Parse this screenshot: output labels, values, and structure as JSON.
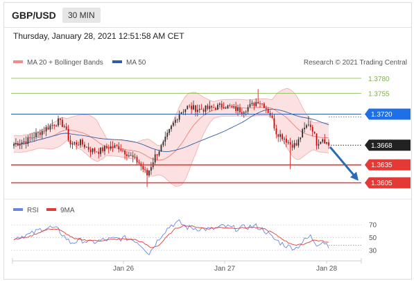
{
  "header": {
    "pair": "GBP/USD",
    "timeframe": "30 MIN",
    "timestamp": "Thursday, January 28, 2021 12:51:58 AM CET"
  },
  "legend": {
    "ma20_bb": "MA 20 + Bollinger Bands",
    "ma50": "MA 50",
    "credit": "Research © 2021 Trading Central",
    "rsi": "RSI",
    "ma9": "9MA"
  },
  "colors": {
    "bull": "#2c2c2c",
    "bear": "#d40000",
    "bollinger": "#f4a9a9",
    "ma50": "#2e5ca8",
    "resistance": "#7cb342",
    "support": "#e53935",
    "current": "#222222",
    "ma50_tag": "#1e6fe8",
    "arrow": "#2a6bb5",
    "rsi": "#6b86e0",
    "rsi_ma": "#e53935"
  },
  "chart_data": [
    {
      "type": "candlestick",
      "title": "",
      "ylim": [
        1.358,
        1.3795
      ],
      "x_labels": [
        "Jan 26",
        "Jan 27",
        "Jan 28"
      ],
      "levels": [
        {
          "value": "1.3780",
          "kind": "resistance"
        },
        {
          "value": "1.3755",
          "kind": "resistance"
        },
        {
          "value": "1.3720",
          "kind": "ma50"
        },
        {
          "value": "1.3668",
          "kind": "current"
        },
        {
          "value": "1.3635",
          "kind": "support"
        },
        {
          "value": "1.3605",
          "kind": "support"
        }
      ],
      "forecast_target": 1.3605,
      "anchors": [
        [
          0,
          1.367
        ],
        [
          6,
          1.3675
        ],
        [
          12,
          1.3688
        ],
        [
          18,
          1.37
        ],
        [
          22,
          1.3708
        ],
        [
          25,
          1.37
        ],
        [
          28,
          1.367
        ],
        [
          33,
          1.3672
        ],
        [
          38,
          1.366
        ],
        [
          42,
          1.3658
        ],
        [
          47,
          1.3665
        ],
        [
          52,
          1.3665
        ],
        [
          57,
          1.3652
        ],
        [
          62,
          1.3638
        ],
        [
          66,
          1.3618
        ],
        [
          70,
          1.365
        ],
        [
          74,
          1.367
        ],
        [
          78,
          1.3698
        ],
        [
          82,
          1.3722
        ],
        [
          86,
          1.3732
        ],
        [
          92,
          1.3728
        ],
        [
          98,
          1.373
        ],
        [
          104,
          1.3735
        ],
        [
          108,
          1.373
        ],
        [
          113,
          1.3726
        ],
        [
          118,
          1.3735
        ],
        [
          121,
          1.3743
        ],
        [
          124,
          1.3735
        ],
        [
          127,
          1.372
        ],
        [
          130,
          1.369
        ],
        [
          134,
          1.368
        ],
        [
          137,
          1.367
        ],
        [
          140,
          1.3668
        ],
        [
          143,
          1.369
        ],
        [
          146,
          1.3705
        ],
        [
          148,
          1.3695
        ],
        [
          150,
          1.3672
        ],
        [
          153,
          1.368
        ],
        [
          156,
          1.3668
        ]
      ]
    },
    {
      "type": "line",
      "title": "",
      "ylim": [
        20,
        80
      ],
      "y_ticks": [
        "70",
        "50",
        "30"
      ],
      "series": [
        {
          "name": "RSI",
          "anchors": [
            [
              0,
              50
            ],
            [
              8,
              55
            ],
            [
              14,
              64
            ],
            [
              18,
              66
            ],
            [
              22,
              62
            ],
            [
              25,
              52
            ],
            [
              28,
              42
            ],
            [
              34,
              46
            ],
            [
              38,
              42
            ],
            [
              44,
              46
            ],
            [
              50,
              48
            ],
            [
              56,
              49
            ],
            [
              60,
              46
            ],
            [
              64,
              36
            ],
            [
              67,
              25
            ],
            [
              70,
              40
            ],
            [
              74,
              58
            ],
            [
              78,
              70
            ],
            [
              82,
              74
            ],
            [
              86,
              66
            ],
            [
              92,
              64
            ],
            [
              98,
              63
            ],
            [
              104,
              68
            ],
            [
              110,
              64
            ],
            [
              116,
              67
            ],
            [
              120,
              68
            ],
            [
              124,
              62
            ],
            [
              128,
              50
            ],
            [
              132,
              42
            ],
            [
              136,
              36
            ],
            [
              140,
              34
            ],
            [
              144,
              46
            ],
            [
              147,
              52
            ],
            [
              150,
              40
            ],
            [
              153,
              44
            ],
            [
              156,
              38
            ]
          ]
        },
        {
          "name": "9MA",
          "anchors": [
            [
              0,
              47
            ],
            [
              8,
              52
            ],
            [
              14,
              60
            ],
            [
              18,
              64
            ],
            [
              22,
              63
            ],
            [
              26,
              56
            ],
            [
              30,
              48
            ],
            [
              36,
              46
            ],
            [
              42,
              45
            ],
            [
              48,
              47
            ],
            [
              54,
              48
            ],
            [
              60,
              47
            ],
            [
              64,
              42
            ],
            [
              68,
              34
            ],
            [
              72,
              38
            ],
            [
              76,
              52
            ],
            [
              80,
              64
            ],
            [
              84,
              69
            ],
            [
              90,
              67
            ],
            [
              96,
              64
            ],
            [
              102,
              66
            ],
            [
              110,
              65
            ],
            [
              118,
              66
            ],
            [
              124,
              64
            ],
            [
              128,
              58
            ],
            [
              132,
              50
            ],
            [
              136,
              42
            ],
            [
              140,
              38
            ],
            [
              144,
              40
            ],
            [
              148,
              46
            ],
            [
              152,
              45
            ],
            [
              156,
              42
            ]
          ]
        }
      ]
    }
  ]
}
